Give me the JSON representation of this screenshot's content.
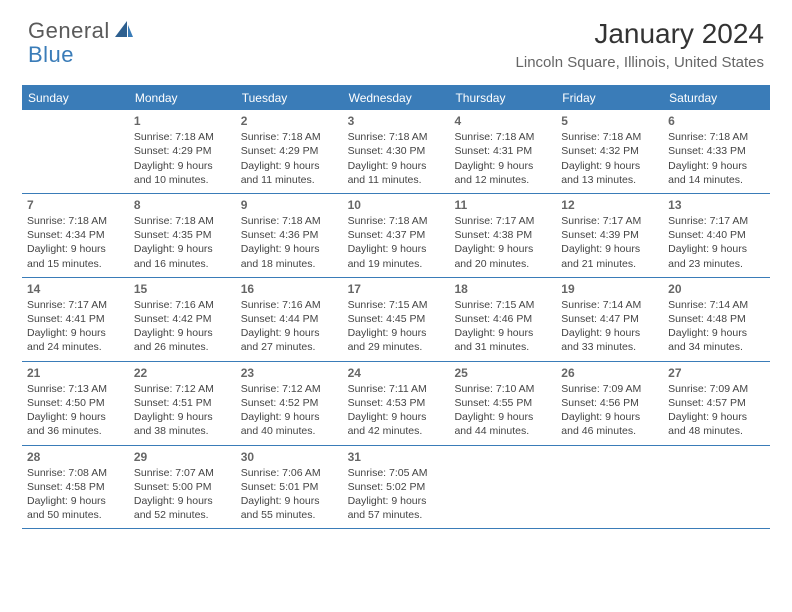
{
  "brand": {
    "part1": "General",
    "part2": "Blue"
  },
  "title": "January 2024",
  "location": "Lincoln Square, Illinois, United States",
  "colors": {
    "accent": "#3a7cb8",
    "text": "#333333",
    "muted": "#666666",
    "bg": "#ffffff"
  },
  "weekdays": [
    "Sunday",
    "Monday",
    "Tuesday",
    "Wednesday",
    "Thursday",
    "Friday",
    "Saturday"
  ],
  "weeks": [
    [
      {
        "n": "",
        "sr": "",
        "ss": "",
        "dl1": "",
        "dl2": ""
      },
      {
        "n": "1",
        "sr": "Sunrise: 7:18 AM",
        "ss": "Sunset: 4:29 PM",
        "dl1": "Daylight: 9 hours",
        "dl2": "and 10 minutes."
      },
      {
        "n": "2",
        "sr": "Sunrise: 7:18 AM",
        "ss": "Sunset: 4:29 PM",
        "dl1": "Daylight: 9 hours",
        "dl2": "and 11 minutes."
      },
      {
        "n": "3",
        "sr": "Sunrise: 7:18 AM",
        "ss": "Sunset: 4:30 PM",
        "dl1": "Daylight: 9 hours",
        "dl2": "and 11 minutes."
      },
      {
        "n": "4",
        "sr": "Sunrise: 7:18 AM",
        "ss": "Sunset: 4:31 PM",
        "dl1": "Daylight: 9 hours",
        "dl2": "and 12 minutes."
      },
      {
        "n": "5",
        "sr": "Sunrise: 7:18 AM",
        "ss": "Sunset: 4:32 PM",
        "dl1": "Daylight: 9 hours",
        "dl2": "and 13 minutes."
      },
      {
        "n": "6",
        "sr": "Sunrise: 7:18 AM",
        "ss": "Sunset: 4:33 PM",
        "dl1": "Daylight: 9 hours",
        "dl2": "and 14 minutes."
      }
    ],
    [
      {
        "n": "7",
        "sr": "Sunrise: 7:18 AM",
        "ss": "Sunset: 4:34 PM",
        "dl1": "Daylight: 9 hours",
        "dl2": "and 15 minutes."
      },
      {
        "n": "8",
        "sr": "Sunrise: 7:18 AM",
        "ss": "Sunset: 4:35 PM",
        "dl1": "Daylight: 9 hours",
        "dl2": "and 16 minutes."
      },
      {
        "n": "9",
        "sr": "Sunrise: 7:18 AM",
        "ss": "Sunset: 4:36 PM",
        "dl1": "Daylight: 9 hours",
        "dl2": "and 18 minutes."
      },
      {
        "n": "10",
        "sr": "Sunrise: 7:18 AM",
        "ss": "Sunset: 4:37 PM",
        "dl1": "Daylight: 9 hours",
        "dl2": "and 19 minutes."
      },
      {
        "n": "11",
        "sr": "Sunrise: 7:17 AM",
        "ss": "Sunset: 4:38 PM",
        "dl1": "Daylight: 9 hours",
        "dl2": "and 20 minutes."
      },
      {
        "n": "12",
        "sr": "Sunrise: 7:17 AM",
        "ss": "Sunset: 4:39 PM",
        "dl1": "Daylight: 9 hours",
        "dl2": "and 21 minutes."
      },
      {
        "n": "13",
        "sr": "Sunrise: 7:17 AM",
        "ss": "Sunset: 4:40 PM",
        "dl1": "Daylight: 9 hours",
        "dl2": "and 23 minutes."
      }
    ],
    [
      {
        "n": "14",
        "sr": "Sunrise: 7:17 AM",
        "ss": "Sunset: 4:41 PM",
        "dl1": "Daylight: 9 hours",
        "dl2": "and 24 minutes."
      },
      {
        "n": "15",
        "sr": "Sunrise: 7:16 AM",
        "ss": "Sunset: 4:42 PM",
        "dl1": "Daylight: 9 hours",
        "dl2": "and 26 minutes."
      },
      {
        "n": "16",
        "sr": "Sunrise: 7:16 AM",
        "ss": "Sunset: 4:44 PM",
        "dl1": "Daylight: 9 hours",
        "dl2": "and 27 minutes."
      },
      {
        "n": "17",
        "sr": "Sunrise: 7:15 AM",
        "ss": "Sunset: 4:45 PM",
        "dl1": "Daylight: 9 hours",
        "dl2": "and 29 minutes."
      },
      {
        "n": "18",
        "sr": "Sunrise: 7:15 AM",
        "ss": "Sunset: 4:46 PM",
        "dl1": "Daylight: 9 hours",
        "dl2": "and 31 minutes."
      },
      {
        "n": "19",
        "sr": "Sunrise: 7:14 AM",
        "ss": "Sunset: 4:47 PM",
        "dl1": "Daylight: 9 hours",
        "dl2": "and 33 minutes."
      },
      {
        "n": "20",
        "sr": "Sunrise: 7:14 AM",
        "ss": "Sunset: 4:48 PM",
        "dl1": "Daylight: 9 hours",
        "dl2": "and 34 minutes."
      }
    ],
    [
      {
        "n": "21",
        "sr": "Sunrise: 7:13 AM",
        "ss": "Sunset: 4:50 PM",
        "dl1": "Daylight: 9 hours",
        "dl2": "and 36 minutes."
      },
      {
        "n": "22",
        "sr": "Sunrise: 7:12 AM",
        "ss": "Sunset: 4:51 PM",
        "dl1": "Daylight: 9 hours",
        "dl2": "and 38 minutes."
      },
      {
        "n": "23",
        "sr": "Sunrise: 7:12 AM",
        "ss": "Sunset: 4:52 PM",
        "dl1": "Daylight: 9 hours",
        "dl2": "and 40 minutes."
      },
      {
        "n": "24",
        "sr": "Sunrise: 7:11 AM",
        "ss": "Sunset: 4:53 PM",
        "dl1": "Daylight: 9 hours",
        "dl2": "and 42 minutes."
      },
      {
        "n": "25",
        "sr": "Sunrise: 7:10 AM",
        "ss": "Sunset: 4:55 PM",
        "dl1": "Daylight: 9 hours",
        "dl2": "and 44 minutes."
      },
      {
        "n": "26",
        "sr": "Sunrise: 7:09 AM",
        "ss": "Sunset: 4:56 PM",
        "dl1": "Daylight: 9 hours",
        "dl2": "and 46 minutes."
      },
      {
        "n": "27",
        "sr": "Sunrise: 7:09 AM",
        "ss": "Sunset: 4:57 PM",
        "dl1": "Daylight: 9 hours",
        "dl2": "and 48 minutes."
      }
    ],
    [
      {
        "n": "28",
        "sr": "Sunrise: 7:08 AM",
        "ss": "Sunset: 4:58 PM",
        "dl1": "Daylight: 9 hours",
        "dl2": "and 50 minutes."
      },
      {
        "n": "29",
        "sr": "Sunrise: 7:07 AM",
        "ss": "Sunset: 5:00 PM",
        "dl1": "Daylight: 9 hours",
        "dl2": "and 52 minutes."
      },
      {
        "n": "30",
        "sr": "Sunrise: 7:06 AM",
        "ss": "Sunset: 5:01 PM",
        "dl1": "Daylight: 9 hours",
        "dl2": "and 55 minutes."
      },
      {
        "n": "31",
        "sr": "Sunrise: 7:05 AM",
        "ss": "Sunset: 5:02 PM",
        "dl1": "Daylight: 9 hours",
        "dl2": "and 57 minutes."
      },
      {
        "n": "",
        "sr": "",
        "ss": "",
        "dl1": "",
        "dl2": ""
      },
      {
        "n": "",
        "sr": "",
        "ss": "",
        "dl1": "",
        "dl2": ""
      },
      {
        "n": "",
        "sr": "",
        "ss": "",
        "dl1": "",
        "dl2": ""
      }
    ]
  ]
}
